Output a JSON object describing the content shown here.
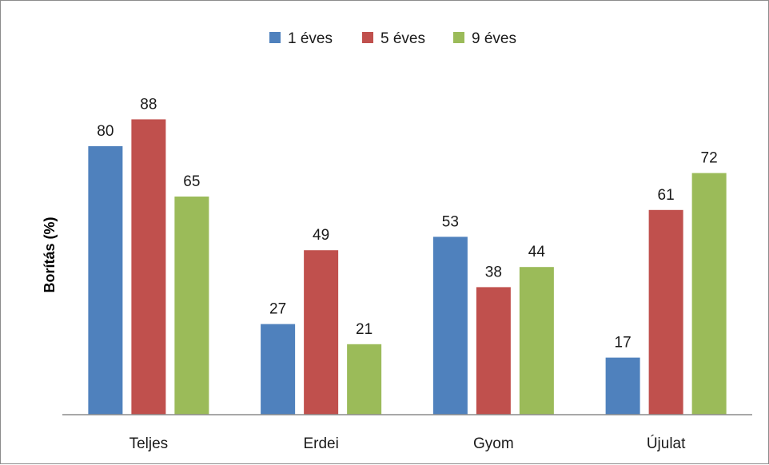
{
  "chart_data": {
    "type": "bar",
    "title": "",
    "xlabel": "",
    "ylabel": "Borítás (%)",
    "categories": [
      "Teljes",
      "Erdei",
      "Gyom",
      "Újulat"
    ],
    "series": [
      {
        "name": "1 éves",
        "color": "#4f81bd",
        "values": [
          80,
          27,
          53,
          17
        ]
      },
      {
        "name": "5 éves",
        "color": "#c0504d",
        "values": [
          88,
          49,
          38,
          61
        ]
      },
      {
        "name": "9 éves",
        "color": "#9bbb59",
        "values": [
          65,
          21,
          44,
          72
        ]
      }
    ],
    "ylim": [
      0,
      100
    ],
    "grid": false,
    "legend_position": "top-center",
    "data_labels": true
  }
}
